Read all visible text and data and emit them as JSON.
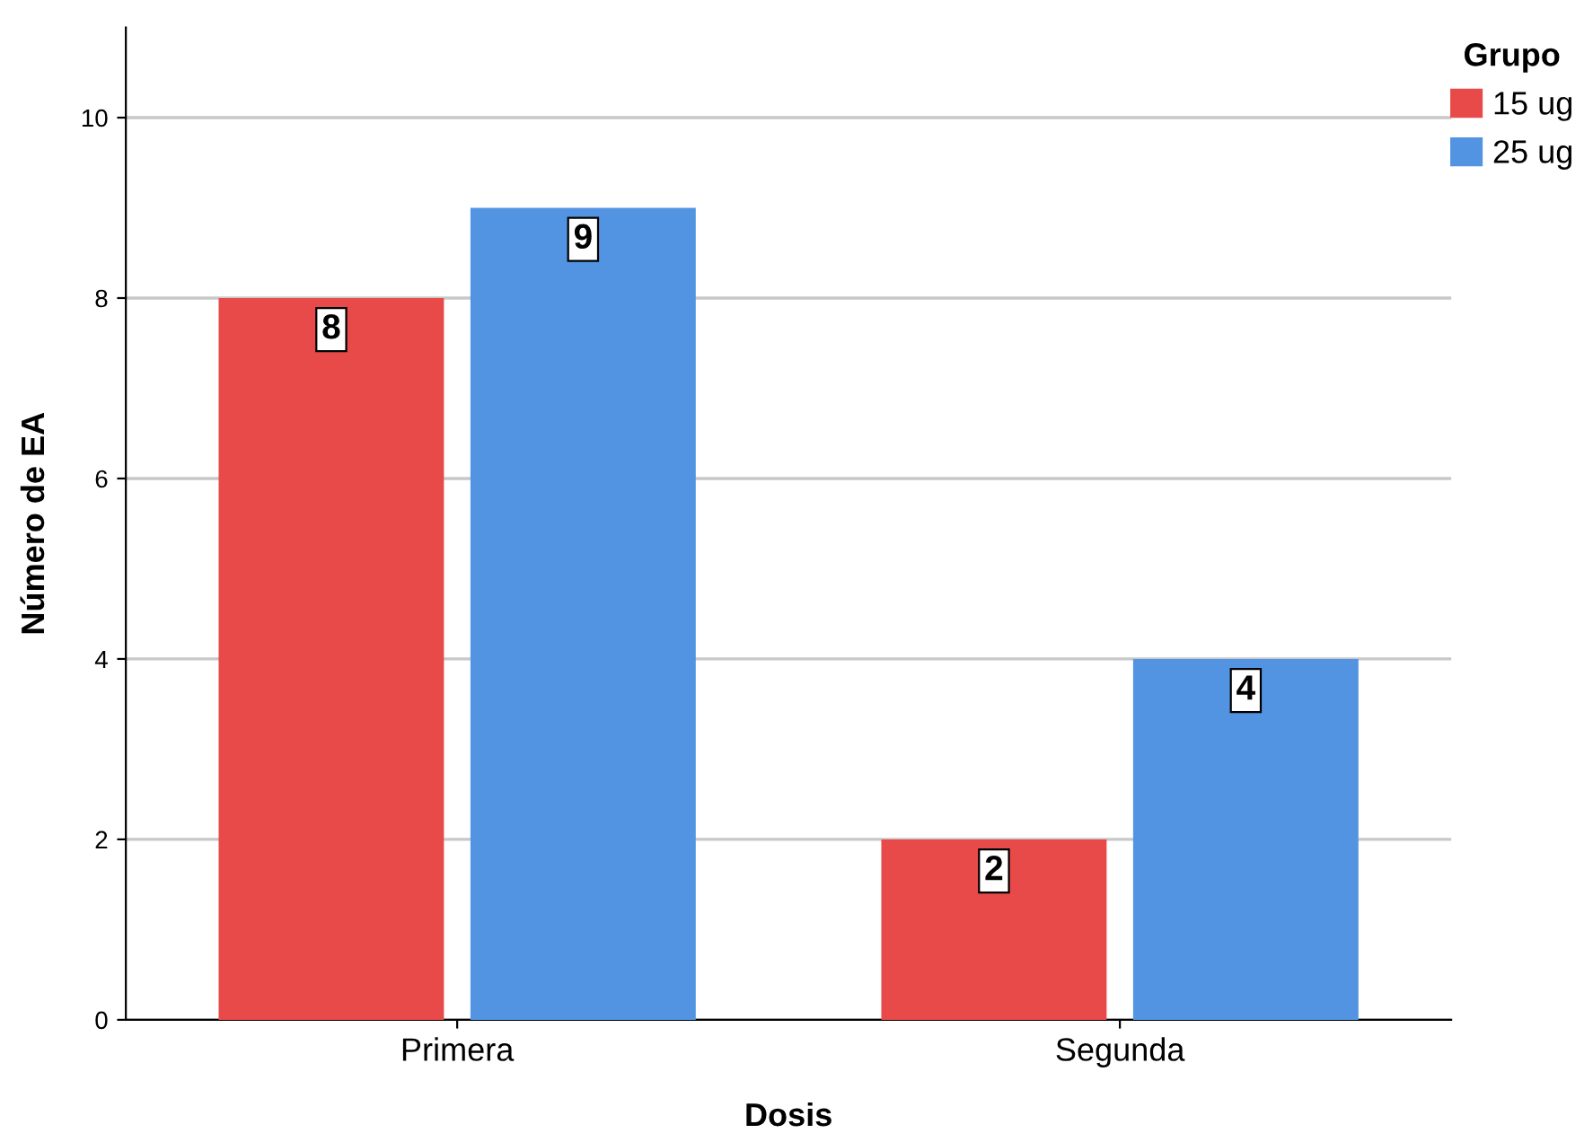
{
  "chart_data": {
    "type": "bar",
    "xlabel": "Dosis",
    "ylabel": "Número de EA",
    "legend_title": "Grupo",
    "categories": [
      "Primera",
      "Segunda"
    ],
    "series": [
      {
        "name": "15 ug",
        "color": "#e84a4a",
        "values": [
          8,
          2
        ]
      },
      {
        "name": "25 ug",
        "color": "#5294e2",
        "values": [
          9,
          4
        ]
      }
    ],
    "ylim": [
      0,
      11
    ],
    "yticks": [
      0,
      2,
      4,
      6,
      8,
      10
    ],
    "grid": "y",
    "legend": "top right",
    "data_labels": true
  }
}
